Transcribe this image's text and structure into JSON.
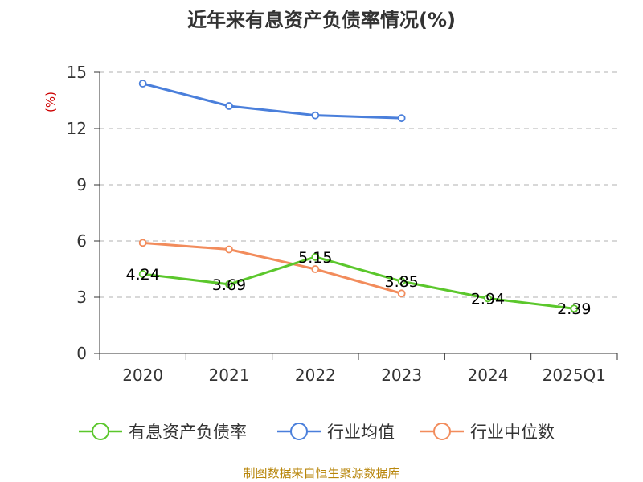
{
  "chart_data": {
    "type": "line",
    "title": "近年来有息资产负债率情况(%)",
    "ylabel": "(%)",
    "xlabel": "",
    "categories": [
      "2020",
      "2021",
      "2022",
      "2023",
      "2024",
      "2025Q1"
    ],
    "ylim": [
      0,
      15
    ],
    "yticks": [
      0,
      3,
      6,
      9,
      12,
      15
    ],
    "grid": true,
    "legend_position": "bottom",
    "series": [
      {
        "name": "有息资产负债率",
        "color": "#5bc72c",
        "values": [
          4.24,
          3.69,
          5.15,
          3.85,
          2.94,
          2.39
        ],
        "labels": [
          "4.24",
          "3.69",
          "5.15",
          "3.85",
          "2.94",
          "2.39"
        ]
      },
      {
        "name": "行业均值",
        "color": "#4a7fdb",
        "values": [
          14.4,
          13.2,
          12.7,
          12.55,
          null,
          null
        ]
      },
      {
        "name": "行业中位数",
        "color": "#f28c5c",
        "values": [
          5.9,
          5.55,
          4.5,
          3.2,
          null,
          null
        ]
      }
    ]
  },
  "footer": {
    "source": "制图数据来自恒生聚源数据库"
  }
}
